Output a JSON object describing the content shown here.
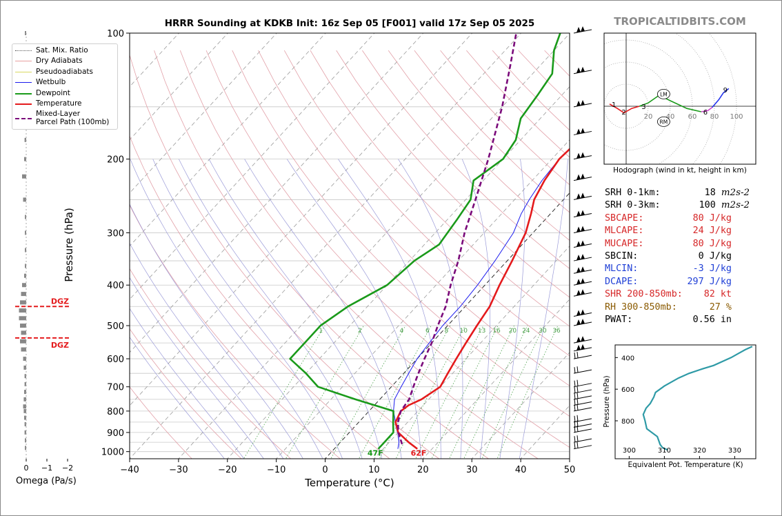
{
  "brand": "TROPICALTIDBITS.COM",
  "chart_data": [
    {
      "type": "line",
      "subtype": "skew-T log-P sounding",
      "title": "HRRR Sounding at KDKB Init: 16z Sep 05 [F001] valid 17z Sep 05 2025",
      "xlabel": "Temperature (°C)",
      "ylabel": "Pressure (hPa)",
      "xlim": [
        -40,
        50
      ],
      "ylim": [
        1040,
        100
      ],
      "y_scale": "log",
      "x_ticks": [
        "−40",
        "−30",
        "−20",
        "−10",
        "0",
        "10",
        "20",
        "30",
        "40",
        "50"
      ],
      "y_ticks": [
        "100",
        "200",
        "300",
        "400",
        "500",
        "600",
        "700",
        "800",
        "900",
        "1000"
      ],
      "mixing_ratio_labels": [
        "1",
        "2",
        "4",
        "6",
        "8",
        "10",
        "13",
        "16",
        "20",
        "24",
        "30",
        "36"
      ],
      "surface_labels": {
        "dewpoint": "47F",
        "temperature": "62F"
      },
      "legend": {
        "placement": "upper-left",
        "entries": [
          "Sat. Mix. Ratio",
          "Dry Adiabats",
          "Pseudoadiabats",
          "Wetbulb",
          "Dewpoint",
          "Temperature",
          "Mixed-Layer\nParcel Path (100mb)"
        ]
      },
      "colors": {
        "temperature": "#e41a1c",
        "dewpoint": "#1a9a1a",
        "wetbulb": "#1a1aee",
        "parcel": "#7a0a7a"
      },
      "series": [
        {
          "name": "Temperature",
          "points": [
            [
              17,
              985
            ],
            [
              14,
              950
            ],
            [
              10,
              900
            ],
            [
              7.5,
              850
            ],
            [
              6.5,
              800
            ],
            [
              7,
              775
            ],
            [
              8.5,
              750
            ],
            [
              10,
              700
            ],
            [
              9,
              650
            ],
            [
              8,
              600
            ],
            [
              7,
              550
            ],
            [
              6,
              500
            ],
            [
              5,
              450
            ],
            [
              3,
              400
            ],
            [
              1,
              350
            ],
            [
              -1.5,
              300
            ],
            [
              -4,
              270
            ],
            [
              -6,
              250
            ],
            [
              -7.5,
              225
            ],
            [
              -8.5,
              200
            ],
            [
              -8,
              180
            ],
            [
              -6,
              160
            ],
            [
              -3,
              140
            ],
            [
              -3,
              125
            ],
            [
              -4,
              110
            ],
            [
              -3.5,
              100
            ]
          ]
        },
        {
          "name": "Dewpoint",
          "points": [
            [
              9,
              985
            ],
            [
              9,
              950
            ],
            [
              9,
              900
            ],
            [
              7,
              850
            ],
            [
              5,
              800
            ],
            [
              -5,
              750
            ],
            [
              -15,
              700
            ],
            [
              -20,
              650
            ],
            [
              -26,
              600
            ],
            [
              -26,
              550
            ],
            [
              -26,
              500
            ],
            [
              -24,
              450
            ],
            [
              -20,
              400
            ],
            [
              -19,
              350
            ],
            [
              -17,
              320
            ],
            [
              -18,
              280
            ],
            [
              -19,
              250
            ],
            [
              -22,
              225
            ],
            [
              -20,
              200
            ],
            [
              -21,
              180
            ],
            [
              -24,
              160
            ],
            [
              -25,
              140
            ],
            [
              -26,
              125
            ],
            [
              -30,
              110
            ],
            [
              -32,
              100
            ]
          ]
        },
        {
          "name": "Wetbulb",
          "points": [
            [
              13,
              985
            ],
            [
              12,
              950
            ],
            [
              10,
              900
            ],
            [
              7.5,
              850
            ],
            [
              5,
              800
            ],
            [
              3,
              750
            ],
            [
              2,
              700
            ],
            [
              1,
              650
            ],
            [
              0,
              600
            ],
            [
              -0.5,
              550
            ],
            [
              -1,
              500
            ],
            [
              -1,
              450
            ],
            [
              -1.5,
              400
            ],
            [
              -2.5,
              350
            ],
            [
              -4,
              300
            ],
            [
              -6,
              270
            ],
            [
              -7,
              250
            ],
            [
              -8,
              225
            ],
            [
              -8.5,
              200
            ],
            [
              -8,
              180
            ],
            [
              -6,
              160
            ],
            [
              -3,
              140
            ],
            [
              -3,
              125
            ],
            [
              -4,
              110
            ],
            [
              -3.5,
              100
            ]
          ]
        },
        {
          "name": "Mixed-Layer\nParcel Path (100mb)",
          "points": [
            [
              13,
              960
            ],
            [
              10,
              900
            ],
            [
              8,
              850
            ],
            [
              6.5,
              800
            ],
            [
              6,
              750
            ],
            [
              4.5,
              700
            ],
            [
              3,
              650
            ],
            [
              1.5,
              600
            ],
            [
              0,
              550
            ],
            [
              -2,
              500
            ],
            [
              -4,
              450
            ],
            [
              -7,
              400
            ],
            [
              -10,
              350
            ],
            [
              -14,
              300
            ],
            [
              -18,
              250
            ],
            [
              -23,
              200
            ],
            [
              -30,
              150
            ],
            [
              -36,
              120
            ],
            [
              -41,
              100
            ]
          ]
        }
      ],
      "wind_barbs_kt_dir": "shown at right edge"
    },
    {
      "type": "line",
      "subtype": "hodograph",
      "caption": "Hodograph (wind in kt, height in km)",
      "ring_labels": [
        "20",
        "40",
        "60",
        "80",
        "100"
      ],
      "height_labels": [
        "1",
        "2",
        "3",
        "6",
        "9"
      ],
      "markers": [
        "LM",
        "RM"
      ],
      "segments": [
        {
          "name": "0-3 km",
          "color": "#e41a1c",
          "points": [
            [
              -15,
              2
            ],
            [
              -8,
              -2
            ],
            [
              -2,
              -6
            ],
            [
              5,
              -2
            ],
            [
              12,
              0
            ]
          ]
        },
        {
          "name": "3-6 km",
          "color": "#1a9a1a",
          "points": [
            [
              12,
              0
            ],
            [
              20,
              3
            ],
            [
              30,
              10
            ],
            [
              40,
              5
            ],
            [
              55,
              -2
            ],
            [
              68,
              -5
            ]
          ]
        },
        {
          "name": "6-9 km",
          "color": "#cc44cc",
          "points": [
            [
              68,
              -5
            ],
            [
              74,
              -4
            ],
            [
              78,
              -1
            ]
          ]
        },
        {
          "name": "9+ km",
          "color": "#2233ee",
          "points": [
            [
              78,
              -1
            ],
            [
              84,
              6
            ],
            [
              88,
              12
            ],
            [
              93,
              16
            ]
          ]
        }
      ]
    },
    {
      "type": "line",
      "subtype": "theta-e profile",
      "xlabel": "Equivalent Pot. Temperature (K)",
      "ylabel": "Pressure (hPa)",
      "xlim": [
        296,
        336
      ],
      "ylim": [
        1040,
        320
      ],
      "x_ticks": [
        "300",
        "310",
        "320",
        "330"
      ],
      "y_ticks": [
        "400",
        "600",
        "800"
      ],
      "series": [
        {
          "name": "theta-e",
          "color": "#2e9aa6",
          "points": [
            [
              311,
              985
            ],
            [
              309.5,
              970
            ],
            [
              308.8,
              950
            ],
            [
              308,
              900
            ],
            [
              305,
              850
            ],
            [
              304.5,
              800
            ],
            [
              304,
              760
            ],
            [
              304.8,
              720
            ],
            [
              306,
              690
            ],
            [
              307,
              650
            ],
            [
              307.5,
              620
            ],
            [
              310,
              580
            ],
            [
              314,
              530
            ],
            [
              317,
              500
            ],
            [
              321,
              470
            ],
            [
              324,
              450
            ],
            [
              327,
              420
            ],
            [
              329,
              400
            ],
            [
              331,
              375
            ],
            [
              333,
              350
            ],
            [
              335,
              330
            ]
          ]
        }
      ]
    },
    {
      "type": "bar",
      "subtype": "omega profile",
      "xlabel": "Omega (Pa/s)",
      "x_ticks": [
        "0",
        "−1",
        "−2"
      ],
      "dgz_labels": [
        "DGZ",
        "DGZ"
      ],
      "dgz_pressure_hpa": [
        450,
        535
      ],
      "series": [
        {
          "name": "omega",
          "points": [
            [
              100,
              -0.02
            ],
            [
              160,
              -0.05
            ],
            [
              180,
              -0.08
            ],
            [
              200,
              -0.1
            ],
            [
              220,
              -0.2
            ],
            [
              250,
              -0.15
            ],
            [
              275,
              -0.05
            ],
            [
              300,
              -0.03
            ],
            [
              330,
              -0.02
            ],
            [
              360,
              -0.05
            ],
            [
              380,
              -0.1
            ],
            [
              400,
              -0.2
            ],
            [
              420,
              -0.25
            ],
            [
              440,
              -0.3
            ],
            [
              460,
              -0.35
            ],
            [
              480,
              -0.35
            ],
            [
              500,
              -0.3
            ],
            [
              520,
              -0.25
            ],
            [
              545,
              -0.3
            ],
            [
              570,
              -0.25
            ],
            [
              600,
              -0.15
            ],
            [
              630,
              -0.12
            ],
            [
              660,
              -0.08
            ],
            [
              690,
              -0.08
            ],
            [
              720,
              -0.1
            ],
            [
              750,
              -0.12
            ],
            [
              780,
              -0.15
            ],
            [
              800,
              -0.12
            ],
            [
              830,
              -0.1
            ],
            [
              860,
              -0.08
            ],
            [
              900,
              -0.08
            ],
            [
              940,
              -0.05
            ],
            [
              980,
              -0.02
            ]
          ]
        }
      ]
    }
  ],
  "indices": [
    {
      "label": "SRH 0-1km:",
      "value": "18",
      "unit": "m2s-2",
      "color": "#000000"
    },
    {
      "label": "SRH 0-3km:",
      "value": "100",
      "unit": "m2s-2",
      "color": "#000000"
    },
    {
      "label": "SBCAPE:",
      "value": "80 J/kg",
      "color": "#d62728"
    },
    {
      "label": "MLCAPE:",
      "value": "24 J/kg",
      "color": "#d62728"
    },
    {
      "label": "MUCAPE:",
      "value": "80 J/kg",
      "color": "#d62728"
    },
    {
      "label": "SBCIN:",
      "value": "0 J/kg",
      "color": "#000000"
    },
    {
      "label": "MLCIN:",
      "value": "-3 J/kg",
      "color": "#1f3fd6"
    },
    {
      "label": "DCAPE:",
      "value": "297 J/kg",
      "color": "#1f3fd6"
    },
    {
      "label": "SHR 200-850mb:",
      "value": "82 kt",
      "color": "#d62728"
    },
    {
      "label": "RH 300-850mb:",
      "value": "27 %",
      "color": "#8a5a00"
    },
    {
      "label": "PWAT:",
      "value": "0.56 in",
      "color": "#000000"
    }
  ]
}
